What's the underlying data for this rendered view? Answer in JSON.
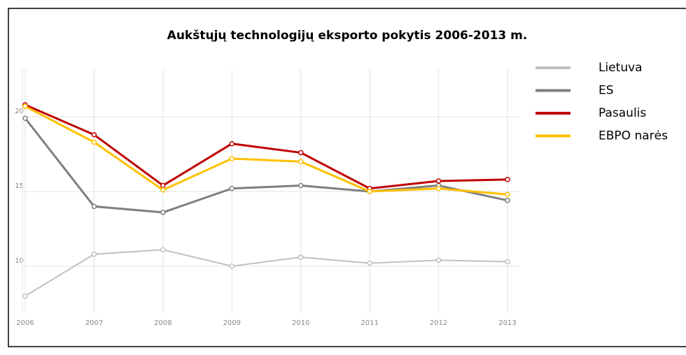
{
  "chart_data": {
    "type": "line",
    "title": "Aukštųjų technologijų eksporto pokytis  2006-2013 m.",
    "categories": [
      "2006",
      "2007",
      "2008",
      "2009",
      "2010",
      "2011",
      "2012",
      "2013"
    ],
    "series": [
      {
        "name": "Lietuva",
        "color": "#c0c0c0",
        "values": [
          8.0,
          10.8,
          11.1,
          10.0,
          10.6,
          10.2,
          10.4,
          10.3
        ]
      },
      {
        "name": "ES",
        "color": "#7f7f7f",
        "values": [
          19.9,
          14.0,
          13.6,
          15.2,
          15.4,
          15.0,
          15.4,
          14.4
        ]
      },
      {
        "name": "Pasaulis",
        "color": "#c00000",
        "values": [
          20.8,
          18.8,
          15.4,
          18.2,
          17.6,
          15.2,
          15.7,
          15.8
        ]
      },
      {
        "name": "EBPO narės",
        "color": "#ffc000",
        "values": [
          20.7,
          18.3,
          15.1,
          17.2,
          17.0,
          15.0,
          15.2,
          14.8
        ]
      }
    ],
    "ylim": [
      7,
      23
    ],
    "yticks": [
      10,
      15,
      20
    ],
    "grid": true,
    "legend": "right"
  }
}
